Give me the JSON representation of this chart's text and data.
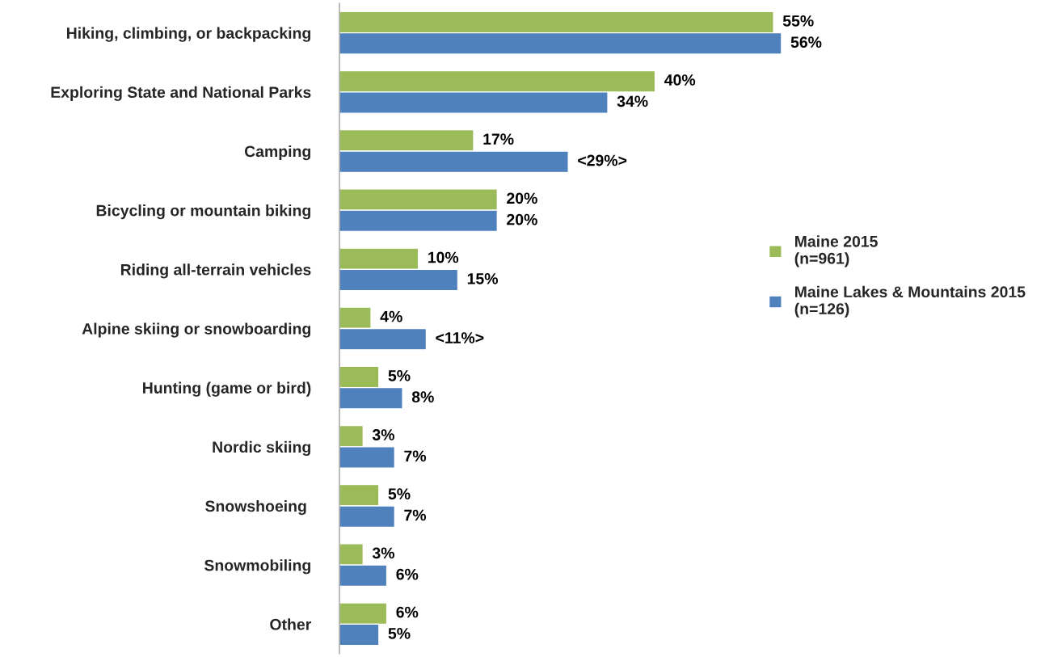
{
  "chart_data": {
    "type": "bar",
    "orientation": "horizontal",
    "categories": [
      "Hiking, climbing, or backpacking",
      "Exploring State and National Parks",
      "Camping",
      "Bicycling or mountain biking",
      "Riding all-terrain vehicles",
      "Alpine skiing or snowboarding",
      "Hunting (game or bird)",
      "Nordic skiing",
      "Snowshoeing ",
      "Snowmobiling",
      "Other"
    ],
    "series": [
      {
        "name": "Maine 2015\n(n=961)",
        "color": "#9bbb59",
        "values": [
          55,
          40,
          17,
          20,
          10,
          4,
          5,
          3,
          5,
          3,
          6
        ],
        "value_labels": [
          "55%",
          "40%",
          "17%",
          "20%",
          "10%",
          "4%",
          "5%",
          "3%",
          "5%",
          "3%",
          "6%"
        ]
      },
      {
        "name": "Maine Lakes & Mountains 2015\n(n=126)",
        "color": "#4f81bd",
        "values": [
          56,
          34,
          29,
          20,
          15,
          11,
          8,
          7,
          7,
          6,
          5
        ],
        "value_labels": [
          "56%",
          "34%",
          "<29%>",
          "20%",
          "15%",
          "<11%>",
          "8%",
          "7%",
          "7%",
          "6%",
          "5%"
        ]
      }
    ],
    "tick_labels": "y",
    "grid": false,
    "legend": "right"
  }
}
